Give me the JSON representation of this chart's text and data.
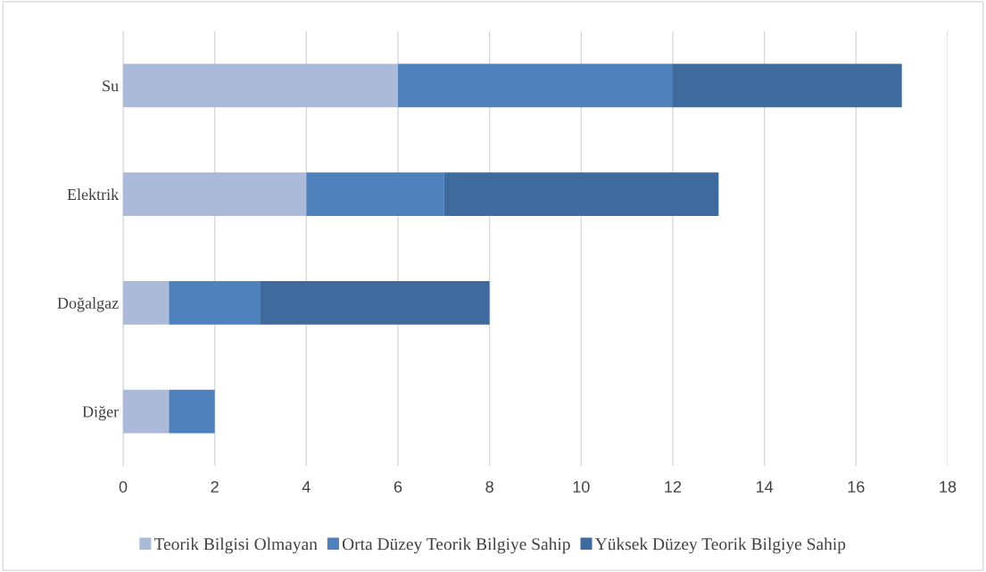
{
  "chart_data": {
    "type": "bar",
    "orientation": "horizontal",
    "stacked": true,
    "categories": [
      "Su",
      "Elektrik",
      "Doğalgaz",
      "Diğer"
    ],
    "series": [
      {
        "name": "Teorik Bilgisi Olmayan",
        "color": "#abbad8",
        "values": [
          6,
          4,
          1,
          1
        ]
      },
      {
        "name": "Orta Düzey Teorik Bilgiye Sahip",
        "color": "#4f81bd",
        "values": [
          6,
          3,
          2,
          1
        ]
      },
      {
        "name": "Yüksek Düzey Teorik Bilgiye Sahip",
        "color": "#3e6a9e",
        "values": [
          5,
          6,
          5,
          0
        ]
      }
    ],
    "xlim": [
      0,
      18
    ],
    "xticks": [
      0,
      2,
      4,
      6,
      8,
      10,
      12,
      14,
      16,
      18
    ],
    "grid": "x",
    "legend": "bottom"
  }
}
